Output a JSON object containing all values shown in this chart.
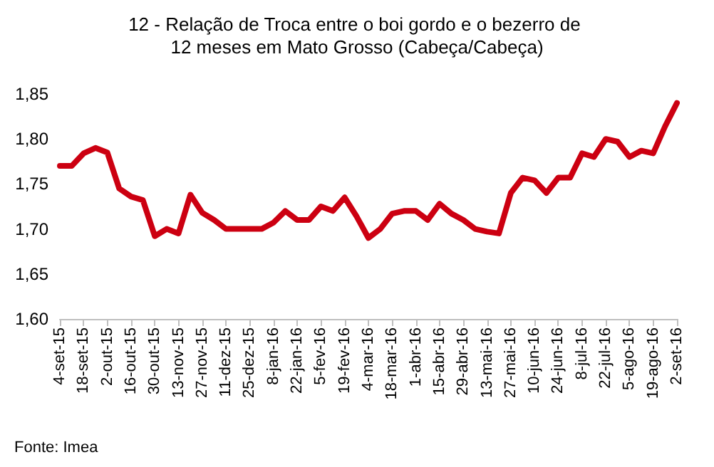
{
  "chart_data": {
    "type": "line",
    "title": "12 - Relação de Troca entre o boi gordo e o bezerro de 12 meses em Mato Grosso (Cabeça/Cabeça)",
    "categories": [
      "4-set-15",
      null,
      "18-set-15",
      null,
      "2-out-15",
      null,
      "16-out-15",
      null,
      "30-out-15",
      null,
      "13-nov-15",
      null,
      "27-nov-15",
      null,
      "11-dez-15",
      null,
      "25-dez-15",
      null,
      "8-jan-16",
      null,
      "22-jan-16",
      null,
      "5-fev-16",
      null,
      "19-fev-16",
      null,
      "4-mar-16",
      null,
      "18-mar-16",
      null,
      "1-abr-16",
      null,
      "15-abr-16",
      null,
      "29-abr-16",
      null,
      "13-mai-16",
      null,
      "27-mai-16",
      null,
      "10-jun-16",
      null,
      "24-jun-16",
      null,
      "8-jul-16",
      null,
      "22-jul-16",
      null,
      "5-ago-16",
      null,
      "19-ago-16",
      null,
      "2-set-16"
    ],
    "series": [
      {
        "color": "#cc0011",
        "values": [
          1.77,
          1.77,
          1.784,
          1.79,
          1.785,
          1.745,
          1.736,
          1.732,
          1.692,
          1.7,
          1.695,
          1.738,
          1.718,
          1.71,
          1.7,
          1.7,
          1.7,
          1.7,
          1.707,
          1.72,
          1.71,
          1.71,
          1.725,
          1.72,
          1.735,
          1.714,
          1.69,
          1.7,
          1.717,
          1.72,
          1.72,
          1.71,
          1.728,
          1.717,
          1.71,
          1.7,
          1.697,
          1.695,
          1.74,
          1.757,
          1.754,
          1.74,
          1.757,
          1.757,
          1.784,
          1.78,
          1.8,
          1.797,
          1.78,
          1.787,
          1.784,
          1.814,
          1.84
        ]
      }
    ],
    "ylim": [
      1.6,
      1.85
    ],
    "yticks": [
      {
        "value": 1.6,
        "label": "1,60"
      },
      {
        "value": 1.65,
        "label": "1,65"
      },
      {
        "value": 1.7,
        "label": "1,70"
      },
      {
        "value": 1.75,
        "label": "1,75"
      },
      {
        "value": 1.8,
        "label": "1,80"
      },
      {
        "value": 1.85,
        "label": "1,85"
      }
    ],
    "grid": false,
    "marker": "none",
    "line_style": "solid",
    "annotations": [
      "Fonte: Imea"
    ]
  }
}
